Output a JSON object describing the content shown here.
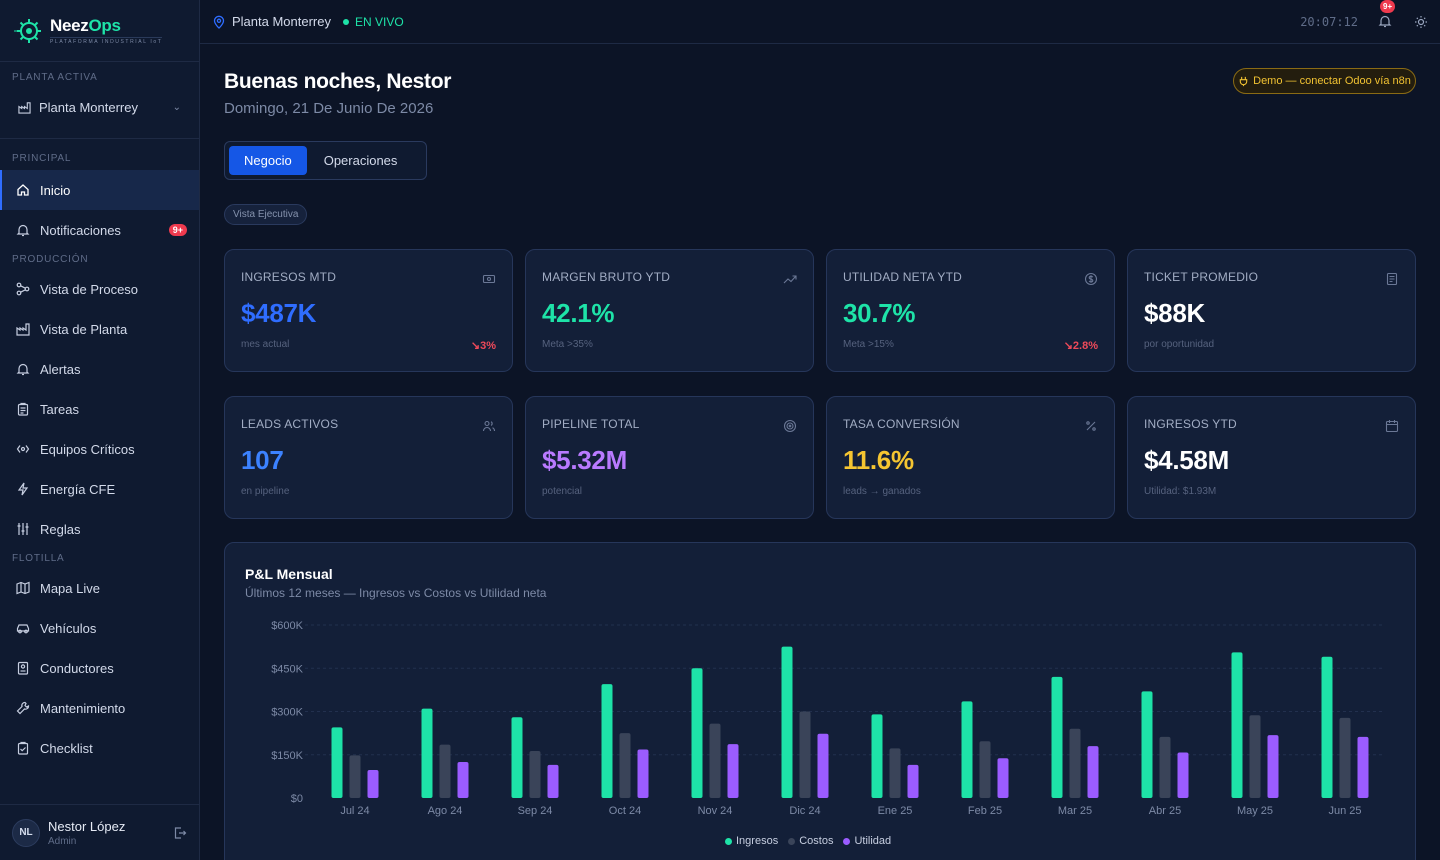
{
  "brand": {
    "name_part1": "Neez",
    "name_part2": "Ops",
    "tagline": "PLATAFORMA INDUSTRIAL IoT"
  },
  "sidebar": {
    "plant_section": "PLANTA ACTIVA",
    "plant_value": "Planta Monterrey",
    "sections": {
      "principal": "PRINCIPAL",
      "produccion": "PRODUCCIÓN",
      "flotilla": "FLOTILLA"
    },
    "items": [
      {
        "label": "Inicio",
        "icon": "home-icon"
      },
      {
        "label": "Notificaciones",
        "icon": "bell-icon",
        "badge": "9+"
      },
      {
        "label": "Vista de Proceso",
        "icon": "process-icon"
      },
      {
        "label": "Vista de Planta",
        "icon": "factory-icon"
      },
      {
        "label": "Alertas",
        "icon": "bell-icon"
      },
      {
        "label": "Tareas",
        "icon": "clipboard-icon"
      },
      {
        "label": "Equipos Críticos",
        "icon": "equipment-icon"
      },
      {
        "label": "Energía CFE",
        "icon": "lightning-icon"
      },
      {
        "label": "Reglas",
        "icon": "sliders-icon"
      },
      {
        "label": "Mapa Live",
        "icon": "map-icon"
      },
      {
        "label": "Vehículos",
        "icon": "car-icon"
      },
      {
        "label": "Conductores",
        "icon": "id-card-icon"
      },
      {
        "label": "Mantenimiento",
        "icon": "wrench-icon"
      },
      {
        "label": "Checklist",
        "icon": "checklist-icon"
      }
    ],
    "user": {
      "initials": "NL",
      "name": "Nestor López",
      "role": "Admin"
    }
  },
  "topbar": {
    "plant": "Planta Monterrey",
    "status": "EN VIVO",
    "clock": "20:07:12",
    "notif_badge": "9+"
  },
  "main": {
    "greeting": "Buenas noches, Nestor",
    "date": "Domingo, 21 De Junio De 2026",
    "demo_pill": "Demo — conectar Odoo vía n8n",
    "tabs": [
      "Negocio",
      "Operaciones"
    ],
    "view_tag": "Vista Ejecutiva"
  },
  "kpis": [
    {
      "title": "INGRESOS MTD",
      "value": "$487K",
      "sub": "mes actual",
      "delta": "↘3%",
      "color": "#2f6dff",
      "icon": "cash-icon"
    },
    {
      "title": "MARGEN BRUTO YTD",
      "value": "42.1%",
      "sub": "Meta >35%",
      "delta": "",
      "color": "#1ee3a8",
      "icon": "trend-up-icon"
    },
    {
      "title": "UTILIDAD NETA YTD",
      "value": "30.7%",
      "sub": "Meta >15%",
      "delta": "↘2.8%",
      "color": "#1ee3a8",
      "icon": "dollar-icon"
    },
    {
      "title": "TICKET PROMEDIO",
      "value": "$88K",
      "sub": "por oportunidad",
      "delta": "",
      "color": "#ffffff",
      "icon": "receipt-icon"
    },
    {
      "title": "LEADS ACTIVOS",
      "value": "107",
      "sub": "en pipeline",
      "delta": "",
      "color": "#3c82ff",
      "icon": "users-icon"
    },
    {
      "title": "PIPELINE TOTAL",
      "value": "$5.32M",
      "sub": "potencial",
      "delta": "",
      "color": "#b97aff",
      "icon": "target-icon"
    },
    {
      "title": "TASA CONVERSIÓN",
      "value": "11.6%",
      "sub": "leads → ganados",
      "delta": "",
      "color": "#f5c531",
      "icon": "percent-icon"
    },
    {
      "title": "INGRESOS YTD",
      "value": "$4.58M",
      "sub": "Utilidad: $1.93M",
      "delta": "",
      "color": "#ffffff",
      "icon": "calendar-icon"
    }
  ],
  "chart_data": {
    "type": "bar",
    "title": "P&L Mensual",
    "subtitle": "Últimos 12 meses — Ingresos vs Costos vs Utilidad neta",
    "categories": [
      "Jul 24",
      "Ago 24",
      "Sep 24",
      "Oct 24",
      "Nov 24",
      "Dic 24",
      "Ene 25",
      "Feb 25",
      "Mar 25",
      "Abr 25",
      "May 25",
      "Jun 25"
    ],
    "series": [
      {
        "name": "Ingresos",
        "color": "#1ee3a8",
        "values": [
          245000,
          310000,
          280000,
          395000,
          450000,
          525000,
          290000,
          335000,
          420000,
          370000,
          505000,
          490000
        ]
      },
      {
        "name": "Costos",
        "color": "#3a4459",
        "values": [
          148000,
          185000,
          163000,
          225000,
          258000,
          300000,
          172000,
          197000,
          240000,
          212000,
          287000,
          278000
        ]
      },
      {
        "name": "Utilidad",
        "color": "#9b5cff",
        "values": [
          97000,
          125000,
          115000,
          168000,
          187000,
          223000,
          115000,
          138000,
          180000,
          158000,
          218000,
          212000
        ]
      }
    ],
    "yticks": [
      "$0",
      "$150K",
      "$300K",
      "$450K",
      "$600K"
    ],
    "ylim": [
      0,
      600000
    ],
    "grid": true,
    "legend_position": "bottom-center"
  }
}
